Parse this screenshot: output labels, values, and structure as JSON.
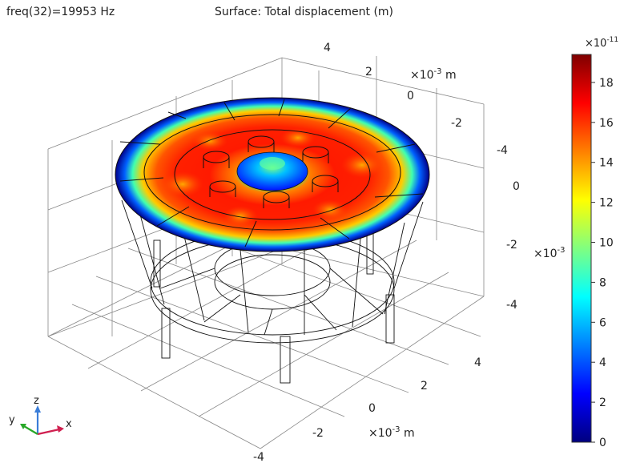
{
  "header": {
    "left": "freq(32)=19953 Hz",
    "center": "Surface: Total displacement (m)"
  },
  "chart_data": {
    "type": "heatmap",
    "title": "Surface: Total displacement (m)",
    "parameter_label": "freq(32)=19953 Hz",
    "colorbar": {
      "multiplier": "×10",
      "exponent": "-11",
      "ticks": [
        "0",
        "2",
        "4",
        "6",
        "8",
        "10",
        "12",
        "14",
        "16",
        "18"
      ],
      "range": [
        0,
        19.4
      ],
      "colormap": "rainbow",
      "colors": [
        "#00007f",
        "#0000ff",
        "#0080ff",
        "#00ffff",
        "#80ff80",
        "#ffff00",
        "#ff8000",
        "#ff0000",
        "#7f0000"
      ]
    },
    "axes": {
      "x": {
        "ticks": [
          "-4",
          "-2",
          "0",
          "2",
          "4"
        ],
        "unit_prefix": "×10",
        "unit_exponent": "-3",
        "unit": "m"
      },
      "y": {
        "ticks": [
          "4",
          "2",
          "0",
          "-2",
          "-4"
        ],
        "unit_prefix": "×10",
        "unit_exponent": "-3",
        "unit": "m"
      },
      "z": {
        "ticks": [
          "0",
          "-2",
          "-4"
        ],
        "unit_prefix": "×10",
        "unit_exponent": "-3"
      }
    },
    "triad": {
      "x": "x",
      "y": "y",
      "z": "z"
    }
  }
}
